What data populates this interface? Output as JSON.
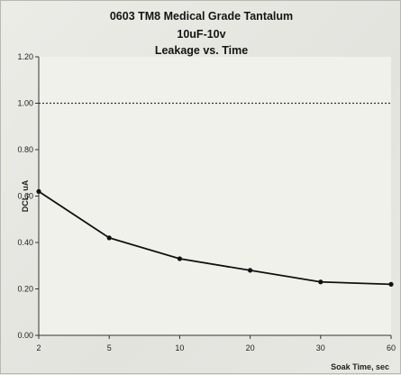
{
  "chart_data": {
    "type": "line",
    "title": "0603 TM8 Medical Grade Tantalum",
    "subtitle": "10uF-10v",
    "subtitle2": "Leakage vs. Time",
    "xlabel": "Soak Time, sec",
    "ylabel": "DCL, uA",
    "categories": [
      "2",
      "5",
      "10",
      "20",
      "30",
      "60"
    ],
    "series": [
      {
        "name": "",
        "values": [
          0.62,
          0.42,
          0.33,
          0.28,
          0.23,
          0.22
        ]
      }
    ],
    "ylim": [
      0,
      1.2
    ],
    "yticks": [
      "0.00",
      "0.20",
      "0.40",
      "0.60",
      "0.80",
      "1.00",
      "1.20"
    ],
    "reference_line": {
      "value": 1.0,
      "style": "dashed"
    },
    "grid": false,
    "legend": "none",
    "colors": {
      "line": "#111111",
      "marker": "#111111",
      "reference": "#333333",
      "plot_bg": "#f1f1ec"
    }
  }
}
